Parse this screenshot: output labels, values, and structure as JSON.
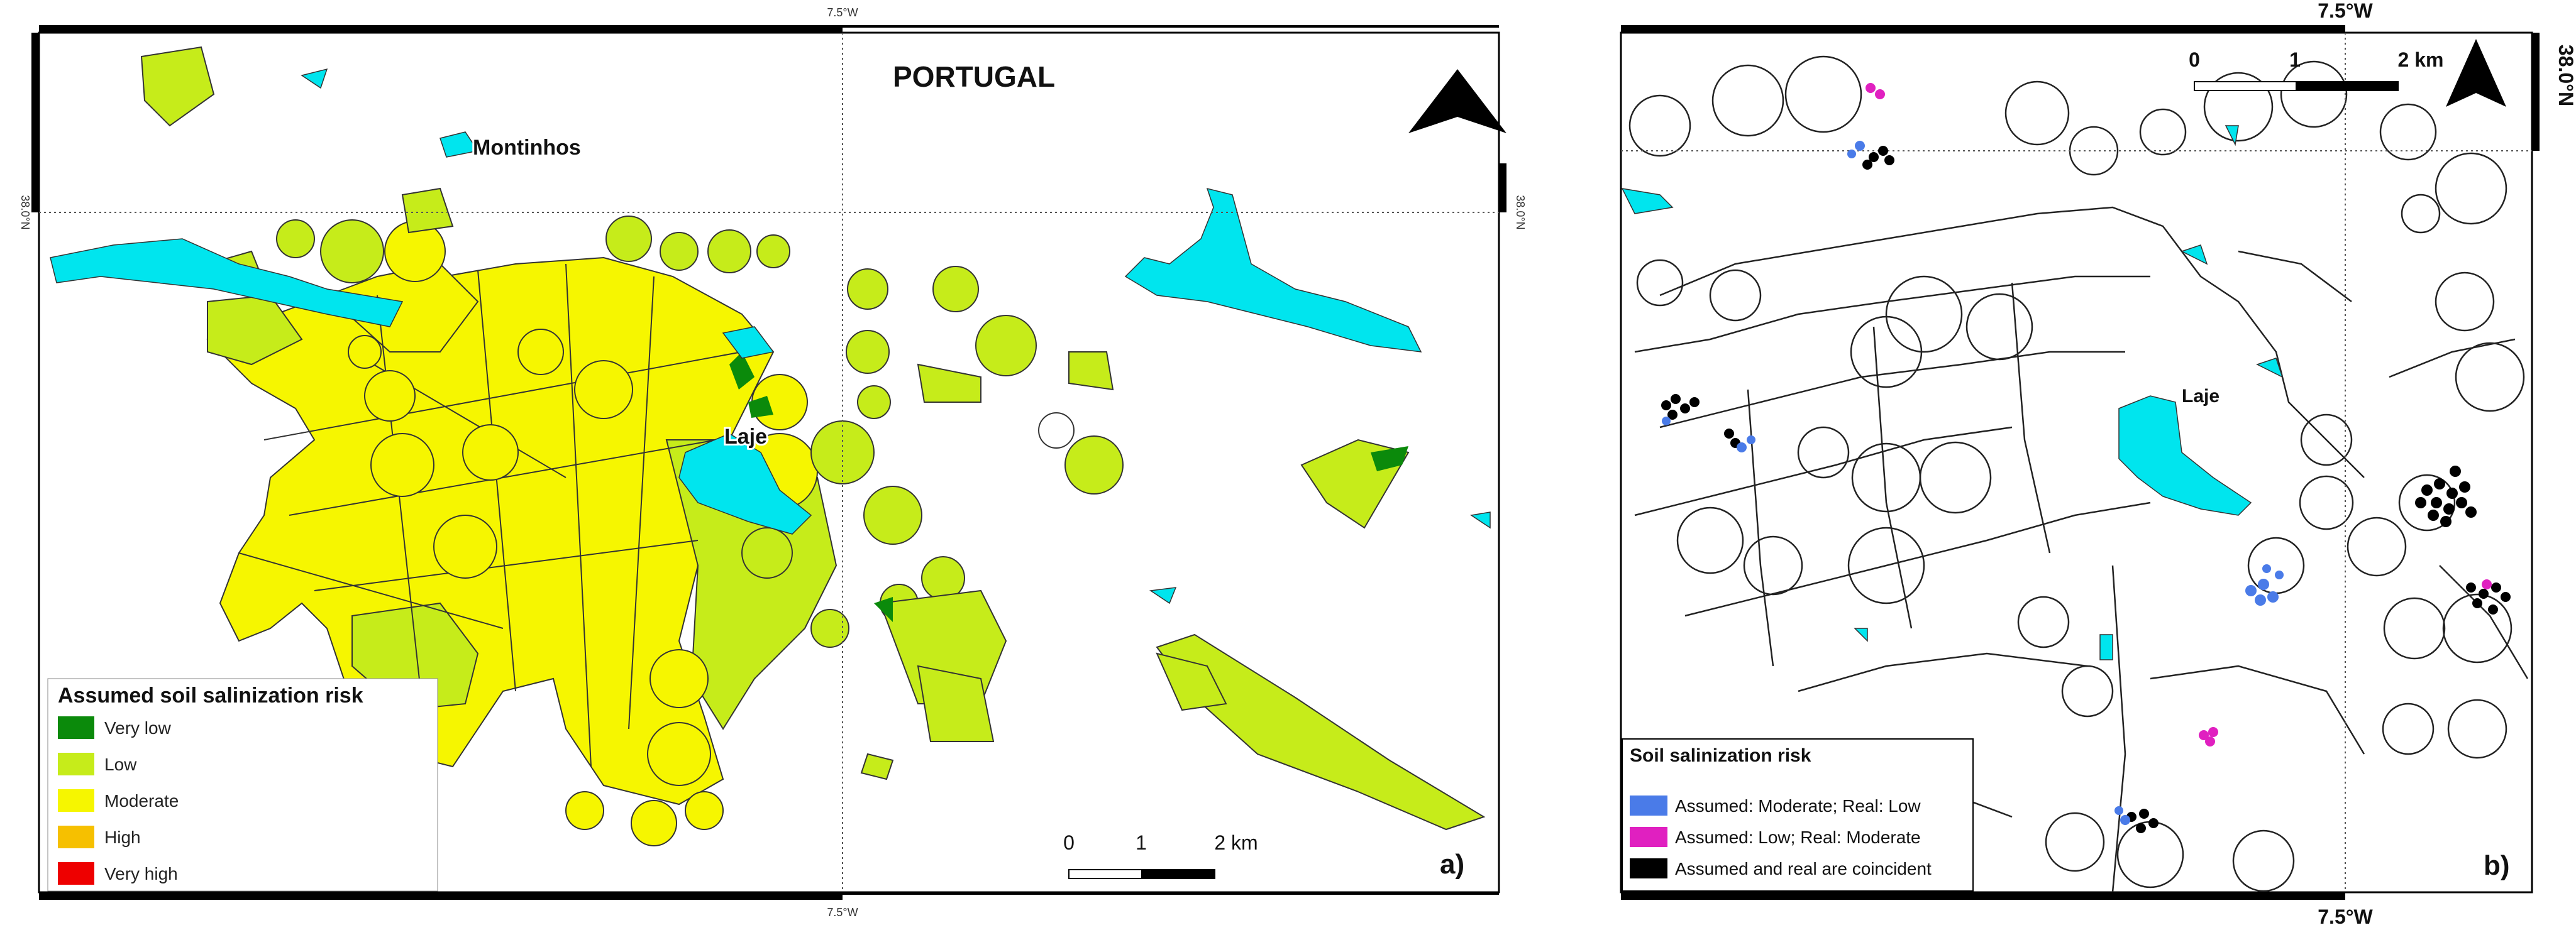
{
  "panel_a": {
    "top_coord": "7.5°W",
    "bottom_coord": "7.5°W",
    "left_coord": "38.0°N",
    "right_coord": "38.0°N",
    "country_label": "PORTUGAL",
    "place_montinhos": "Montinhos",
    "place_laje": "Laje",
    "panel_label": "a)",
    "scale": {
      "tick_0": "0",
      "tick_1": "1",
      "tick_2": "2 km"
    },
    "legend": {
      "title": "Assumed soil salinization risk",
      "items": [
        {
          "label": "Very low",
          "color": "#0b8a0b"
        },
        {
          "label": "Low",
          "color": "#c6ec1a"
        },
        {
          "label": "Moderate",
          "color": "#f6f600"
        },
        {
          "label": "High",
          "color": "#f6c000"
        },
        {
          "label": "Very high",
          "color": "#ee0000"
        }
      ]
    }
  },
  "panel_b": {
    "top_coord": "7.5°W",
    "bottom_coord": "7.5°W",
    "right_coord": "38.0°N",
    "place_laje": "Laje",
    "panel_label": "b)",
    "scale": {
      "tick_0": "0",
      "tick_1": "1",
      "tick_2": "2 km"
    },
    "legend": {
      "title": "Soil salinization risk",
      "items": [
        {
          "label": "Assumed: Moderate; Real: Low",
          "color": "#4a7be8"
        },
        {
          "label": "Assumed: Low; Real: Moderate",
          "color": "#e020c0"
        },
        {
          "label": "Assumed and real are coincident",
          "color": "#000000"
        }
      ]
    }
  },
  "colors": {
    "water": "#00e5ee",
    "frame": "#000000"
  },
  "icons": {
    "north_arrow": "north-arrow-icon"
  }
}
